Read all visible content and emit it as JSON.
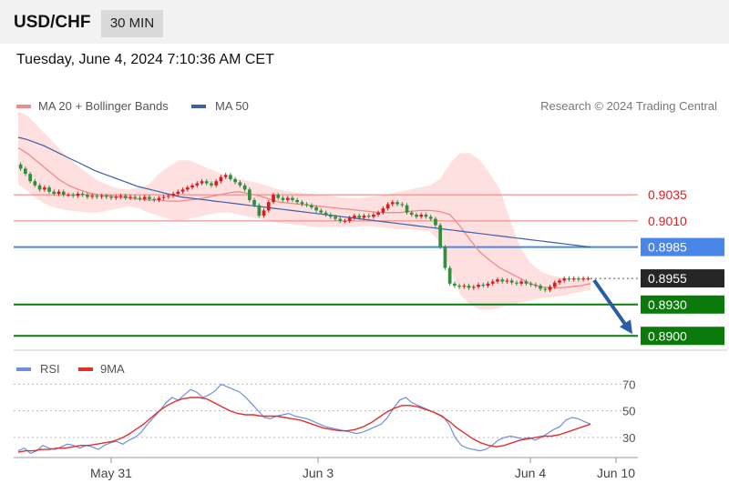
{
  "header": {
    "symbol": "USD/CHF",
    "timeframe": "30 MIN"
  },
  "datetime": "Tuesday, June 4, 2024 7:10:36 AM CET",
  "legend": {
    "ma20_label": "MA 20 + Bollinger Bands",
    "ma50_label": "MA 50",
    "credit": "Research © 2024 Trading Central"
  },
  "colors": {
    "bb_fill": "#ffd6d6",
    "ma20": "#f08a8a",
    "ma50": "#3b5fa8",
    "candle_up": "#d81c1c",
    "candle_down": "#2f8f3c",
    "resistance": "#f07a7a",
    "pivot": "#4a86e8",
    "support": "#0a7a0a",
    "current": "#262626",
    "arrow": "#2b5ca6",
    "rsi": "#6f8ee0",
    "rsi_ma": "#e03030"
  },
  "chart_data": [
    {
      "type": "candlestick",
      "title": "USD/CHF",
      "x_ticks": [
        "May 31",
        "Jun 3",
        "Jun 4",
        "Jun 10"
      ],
      "ylim": [
        0.8895,
        0.911
      ],
      "levels": [
        {
          "label": "0.9035",
          "value": 0.9035,
          "kind": "resistance"
        },
        {
          "label": "0.9010",
          "value": 0.901,
          "kind": "resistance"
        },
        {
          "label": "0.8985",
          "value": 0.8985,
          "kind": "pivot"
        },
        {
          "label": "0.8955",
          "value": 0.8955,
          "kind": "current"
        },
        {
          "label": "0.8930",
          "value": 0.893,
          "kind": "support"
        },
        {
          "label": "0.8900",
          "value": 0.89,
          "kind": "support"
        }
      ],
      "close": [
        0.906,
        0.9055,
        0.9048,
        0.9044,
        0.904,
        0.9042,
        0.9038,
        0.9036,
        0.9038,
        0.9035,
        0.9035,
        0.9034,
        0.9036,
        0.9035,
        0.9033,
        0.9034,
        0.9033,
        0.9034,
        0.9033,
        0.9032,
        0.9033,
        0.9034,
        0.9032,
        0.9033,
        0.9032,
        0.9031,
        0.9033,
        0.9031,
        0.903,
        0.9032,
        0.9033,
        0.9034,
        0.9036,
        0.9038,
        0.904,
        0.9042,
        0.9044,
        0.9046,
        0.9048,
        0.9046,
        0.9044,
        0.9048,
        0.9052,
        0.9054,
        0.905,
        0.9047,
        0.9044,
        0.904,
        0.903,
        0.9025,
        0.9015,
        0.902,
        0.9028,
        0.9035,
        0.9032,
        0.903,
        0.9032,
        0.903,
        0.9028,
        0.9026,
        0.9025,
        0.9023,
        0.902,
        0.9018,
        0.9016,
        0.9014,
        0.9012,
        0.901,
        0.901,
        0.9013,
        0.9015,
        0.9013,
        0.9015,
        0.9014,
        0.9016,
        0.9018,
        0.9022,
        0.9026,
        0.9028,
        0.9026,
        0.9025,
        0.9018,
        0.9016,
        0.9014,
        0.9016,
        0.9014,
        0.9012,
        0.9006,
        0.8985,
        0.8965,
        0.895,
        0.8948,
        0.8947,
        0.8948,
        0.8946,
        0.8947,
        0.8949,
        0.8948,
        0.895,
        0.8952,
        0.8954,
        0.8952,
        0.8953,
        0.8951,
        0.895,
        0.8952,
        0.895,
        0.8949,
        0.8948,
        0.8945,
        0.8944,
        0.8947,
        0.8951,
        0.8953,
        0.8955,
        0.8954,
        0.8955,
        0.8954,
        0.8955,
        0.8955
      ],
      "ma50": [
        0.909,
        0.9088,
        0.9085,
        0.9082,
        0.9078,
        0.9074,
        0.907,
        0.9066,
        0.9062,
        0.9058,
        0.9055,
        0.9052,
        0.9049,
        0.9046,
        0.9043,
        0.9041,
        0.9039,
        0.9037,
        0.9035,
        0.9033,
        0.9032,
        0.9031,
        0.903,
        0.9029,
        0.9028,
        0.9027,
        0.9026,
        0.9025,
        0.9024,
        0.9023,
        0.9022,
        0.9021,
        0.902,
        0.9019,
        0.9018,
        0.9017,
        0.9016,
        0.9015,
        0.9014,
        0.9013,
        0.9012,
        0.9011,
        0.901,
        0.9009,
        0.9008,
        0.9007,
        0.9006,
        0.9005,
        0.9004,
        0.9003,
        0.9002,
        0.9001,
        0.9,
        0.8999,
        0.8998,
        0.8997,
        0.8996,
        0.8995,
        0.8994,
        0.8993,
        0.8992,
        0.8991,
        0.899,
        0.8989,
        0.8988,
        0.8987,
        0.8986,
        0.8985
      ],
      "ma20": [
        0.908,
        0.9074,
        0.9066,
        0.9058,
        0.905,
        0.9044,
        0.904,
        0.9037,
        0.9035,
        0.9034,
        0.9033,
        0.9032,
        0.9031,
        0.903,
        0.903,
        0.9029,
        0.9029,
        0.903,
        0.9031,
        0.9033,
        0.9035,
        0.9037,
        0.9038,
        0.9036,
        0.9034,
        0.9031,
        0.9028,
        0.9027,
        0.9026,
        0.9025,
        0.9024,
        0.9023,
        0.9022,
        0.9021,
        0.902,
        0.9019,
        0.9018,
        0.9018,
        0.9018,
        0.9019,
        0.902,
        0.902,
        0.9019,
        0.9016,
        0.9005,
        0.8992,
        0.898,
        0.8972,
        0.8965,
        0.896,
        0.8955,
        0.895,
        0.8947,
        0.8946,
        0.8946,
        0.8947,
        0.8948,
        0.895
      ],
      "bb_upper": [
        0.9115,
        0.911,
        0.91,
        0.909,
        0.908,
        0.907,
        0.9062,
        0.9055,
        0.9048,
        0.9044,
        0.9041,
        0.904,
        0.9042,
        0.9045,
        0.9055,
        0.9062,
        0.9068,
        0.9068,
        0.9064,
        0.906,
        0.9056,
        0.9052,
        0.905,
        0.9048,
        0.9046,
        0.9043,
        0.904,
        0.9038,
        0.9037,
        0.9036,
        0.9035,
        0.9034,
        0.9033,
        0.9032,
        0.9032,
        0.9033,
        0.9034,
        0.9036,
        0.9038,
        0.904,
        0.9042,
        0.9044,
        0.905,
        0.9065,
        0.9075,
        0.9075,
        0.9068,
        0.9055,
        0.904,
        0.901,
        0.8985,
        0.897,
        0.8962,
        0.8958,
        0.8956,
        0.8955,
        0.8955,
        0.8956
      ],
      "bb_lower": [
        0.9045,
        0.9038,
        0.903,
        0.9025,
        0.9022,
        0.902,
        0.9019,
        0.9018,
        0.9018,
        0.902,
        0.9022,
        0.9024,
        0.9022,
        0.9018,
        0.9015,
        0.9012,
        0.901,
        0.9012,
        0.9014,
        0.9016,
        0.9018,
        0.9018,
        0.9016,
        0.9014,
        0.9012,
        0.901,
        0.9008,
        0.9007,
        0.9006,
        0.9005,
        0.9004,
        0.9004,
        0.9004,
        0.9004,
        0.9005,
        0.9005,
        0.9004,
        0.9003,
        0.9002,
        0.9002,
        0.9001,
        0.9,
        0.899,
        0.8965,
        0.894,
        0.893,
        0.8925,
        0.8925,
        0.8927,
        0.893,
        0.8932,
        0.8934,
        0.8936,
        0.8937,
        0.8938,
        0.894,
        0.8942,
        0.8944
      ]
    },
    {
      "type": "line",
      "title": "RSI",
      "series": [
        {
          "name": "RSI",
          "values": [
            20,
            22,
            18,
            20,
            24,
            22,
            21,
            23,
            25,
            24,
            22,
            24,
            23,
            21,
            24,
            26,
            27,
            25,
            28,
            30,
            34,
            40,
            45,
            50,
            56,
            60,
            58,
            62,
            66,
            64,
            60,
            62,
            65,
            70,
            68,
            66,
            64,
            60,
            55,
            50,
            45,
            44,
            46,
            47,
            48,
            46,
            45,
            44,
            42,
            40,
            38,
            37,
            36,
            35,
            34,
            33,
            34,
            36,
            38,
            40,
            45,
            52,
            58,
            60,
            56,
            54,
            52,
            50,
            48,
            46,
            40,
            30,
            24,
            22,
            21,
            20,
            21,
            24,
            28,
            30,
            31,
            30,
            29,
            30,
            28,
            30,
            33,
            36,
            38,
            43,
            45,
            44,
            42,
            40
          ]
        },
        {
          "name": "9MA",
          "values": [
            19,
            20,
            20,
            21,
            21,
            22,
            22,
            23,
            24,
            24,
            25,
            26,
            27,
            29,
            32,
            36,
            40,
            45,
            50,
            54,
            57,
            59,
            60,
            60,
            59,
            56,
            53,
            50,
            48,
            47,
            47,
            46,
            46,
            46,
            45,
            44,
            43,
            41,
            39,
            37,
            36,
            35,
            35,
            36,
            38,
            41,
            45,
            49,
            52,
            54,
            54,
            53,
            51,
            49,
            46,
            42,
            37,
            33,
            29,
            26,
            24,
            23,
            24,
            26,
            28,
            29,
            30,
            31,
            31,
            32,
            34,
            36,
            38,
            40
          ]
        }
      ],
      "y_ticks": [
        "70",
        "50",
        "30"
      ],
      "ylim": [
        17,
        75
      ]
    }
  ]
}
